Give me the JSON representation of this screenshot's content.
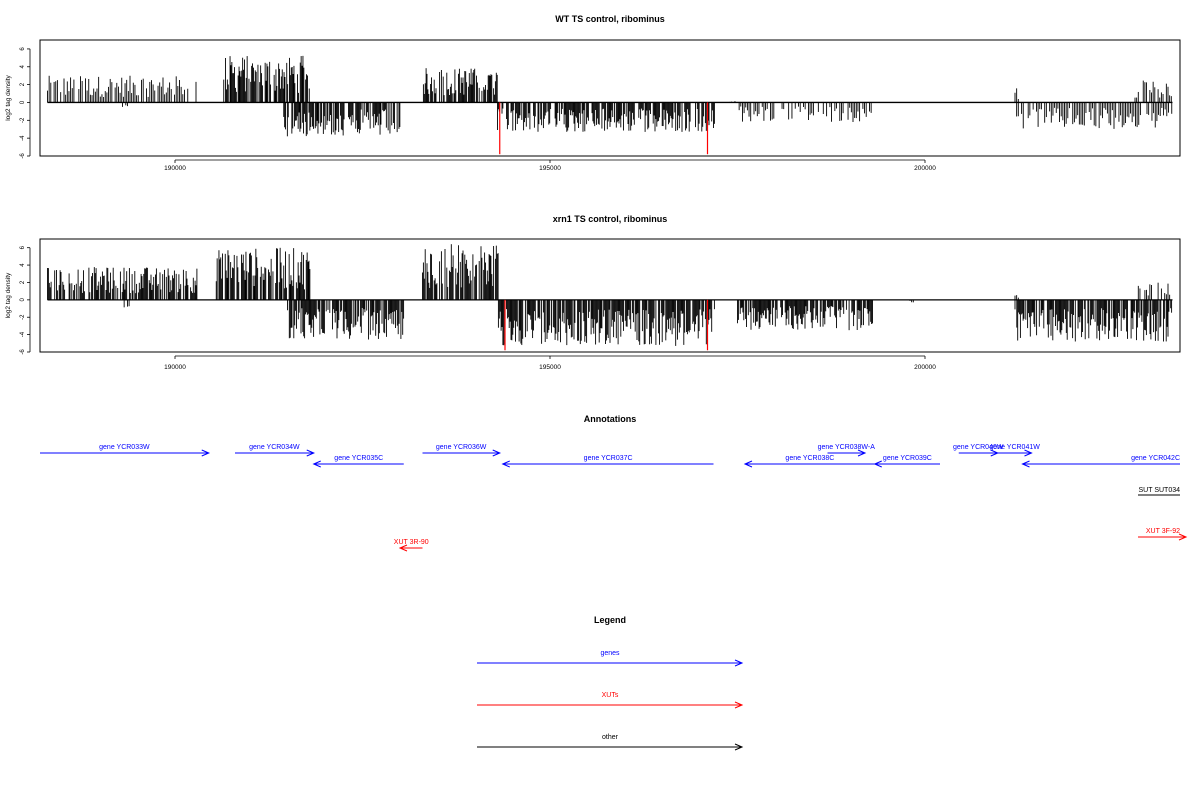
{
  "chart_data": [
    {
      "type": "bar",
      "title": "WT TS control, ribominus",
      "ylabel": "log2 tag density",
      "xlabel": "",
      "xlim": [
        188200,
        203400
      ],
      "ylim": [
        -6,
        7
      ],
      "yticks": [
        "6",
        "4",
        "2",
        "0",
        "-2",
        "-4",
        "-6"
      ],
      "xticks": [
        "190000",
        "195000",
        "200000"
      ],
      "grid": false,
      "series": [
        {
          "strand": "plus",
          "color": "#000000",
          "regions": [
            [
              188300,
              190300,
              3.0
            ],
            [
              190650,
              191800,
              5.3
            ],
            [
              193300,
              194300,
              3.9
            ],
            [
              197400,
              197500,
              0.3
            ],
            [
              201200,
              201250,
              1.9
            ],
            [
              202800,
              203300,
              2.5
            ]
          ]
        },
        {
          "strand": "minus",
          "color": "#000000",
          "regions": [
            [
              189300,
              189400,
              0.6
            ],
            [
              191450,
              193000,
              3.8
            ],
            [
              194300,
              197200,
              3.4
            ],
            [
              197500,
              199300,
              2.2
            ],
            [
              201200,
              203300,
              3.0
            ]
          ]
        },
        {
          "strand": "highlight",
          "color": "#ff0000",
          "values": [
            [
              194330,
              -5.8
            ],
            [
              197100,
              -5.8
            ]
          ]
        }
      ]
    },
    {
      "type": "bar",
      "title": "xrn1 TS control, ribominus",
      "ylabel": "log2 tag density",
      "xlabel": "",
      "xlim": [
        188200,
        203400
      ],
      "ylim": [
        -6,
        7
      ],
      "yticks": [
        "6",
        "4",
        "2",
        "0",
        "-2",
        "-4",
        "-6"
      ],
      "xticks": [
        "190000",
        "195000",
        "200000"
      ],
      "grid": false,
      "series": [
        {
          "strand": "plus",
          "color": "#000000",
          "regions": [
            [
              188300,
              190300,
              3.8
            ],
            [
              190550,
              191800,
              6.0
            ],
            [
              193300,
              194350,
              6.5
            ],
            [
              201200,
              201250,
              0.8
            ],
            [
              202800,
              203300,
              2.0
            ]
          ]
        },
        {
          "strand": "minus",
          "color": "#000000",
          "regions": [
            [
              189300,
              189400,
              1.0
            ],
            [
              191500,
              193050,
              4.6
            ],
            [
              194300,
              197200,
              5.3
            ],
            [
              197500,
              199300,
              3.5
            ],
            [
              199800,
              199850,
              0.3
            ],
            [
              201200,
              203300,
              4.8
            ]
          ]
        },
        {
          "strand": "highlight",
          "color": "#ff0000",
          "values": [
            [
              194400,
              -5.8
            ],
            [
              197100,
              -5.8
            ]
          ]
        }
      ]
    }
  ],
  "annotations": {
    "title": "Annotations",
    "features": [
      {
        "label": "gene YCR033W",
        "start": 188200,
        "end": 190450,
        "strand": "+",
        "row": 0,
        "color": "#0000ff"
      },
      {
        "label": "gene YCR034W",
        "start": 190800,
        "end": 191850,
        "strand": "+",
        "row": 0,
        "color": "#0000ff"
      },
      {
        "label": "gene YCR035C",
        "start": 191850,
        "end": 193050,
        "strand": "-",
        "row": 1,
        "color": "#0000ff"
      },
      {
        "label": "gene YCR036W",
        "start": 193300,
        "end": 194330,
        "strand": "+",
        "row": 0,
        "color": "#0000ff"
      },
      {
        "label": "gene YCR037C",
        "start": 194370,
        "end": 197180,
        "strand": "-",
        "row": 1,
        "color": "#0000ff"
      },
      {
        "label": "gene YCR038W-A",
        "start": 198700,
        "end": 199200,
        "strand": "+",
        "row": 0,
        "color": "#0000ff"
      },
      {
        "label": "gene YCR038C",
        "start": 197600,
        "end": 199330,
        "strand": "-",
        "row": 1,
        "color": "#0000ff"
      },
      {
        "label": "gene YCR039C",
        "start": 199330,
        "end": 200200,
        "strand": "-",
        "row": 1,
        "color": "#0000ff"
      },
      {
        "label": "gene YCR040W",
        "start": 200450,
        "end": 200970,
        "strand": "+",
        "row": 0,
        "color": "#0000ff"
      },
      {
        "label": "gene YCR041W",
        "start": 200970,
        "end": 201420,
        "strand": "+",
        "row": 0,
        "color": "#0000ff"
      },
      {
        "label": "gene YCR042C",
        "start": 201300,
        "end": 203400,
        "strand": "-",
        "row": 1,
        "color": "#0000ff"
      },
      {
        "label": "SUT SUT034",
        "start": 202840,
        "end": 203400,
        "strand": ".",
        "row": 2,
        "color": "#000000"
      },
      {
        "label": "XUT 3F-92",
        "start": 202840,
        "end": 203480,
        "strand": "+",
        "row": 3,
        "color": "#ff0000"
      },
      {
        "label": "XUT 3R-90",
        "start": 193000,
        "end": 193300,
        "strand": "-",
        "row": 4,
        "color": "#ff0000"
      }
    ]
  },
  "legend": {
    "title": "Legend",
    "items": [
      {
        "label": "genes",
        "color": "#0000ff"
      },
      {
        "label": "XUTs",
        "color": "#ff0000"
      },
      {
        "label": "other",
        "color": "#000000"
      }
    ]
  }
}
